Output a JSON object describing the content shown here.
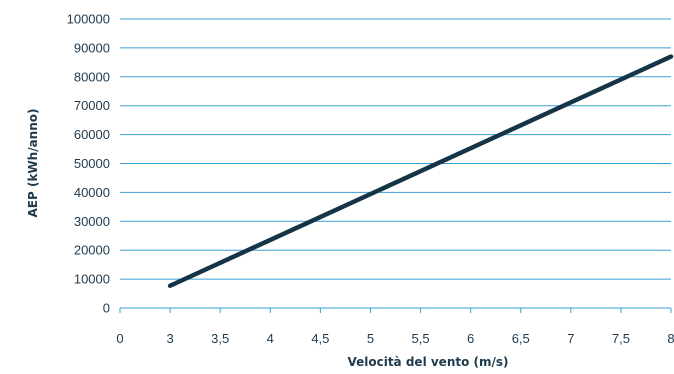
{
  "chart_data": {
    "type": "line",
    "title": "",
    "xlabel": "Velocità del vento (m/s)",
    "ylabel": "AEP (kWh/anno)",
    "x_ticks": [
      "0",
      "3",
      "3,5",
      "4",
      "4,5",
      "5",
      "5,5",
      "6",
      "6,5",
      "7",
      "7,5",
      "8"
    ],
    "y_ticks": [
      "0",
      "10000",
      "20000",
      "30000",
      "40000",
      "50000",
      "60000",
      "70000",
      "80000",
      "90000",
      "100000"
    ],
    "ylim": [
      0,
      100000
    ],
    "grid": "horizontal",
    "legend": "none",
    "series": [
      {
        "color": "#163447",
        "points": [
          {
            "x": "3",
            "y": 7700
          },
          {
            "x": "8",
            "y": 87000
          }
        ]
      }
    ]
  }
}
